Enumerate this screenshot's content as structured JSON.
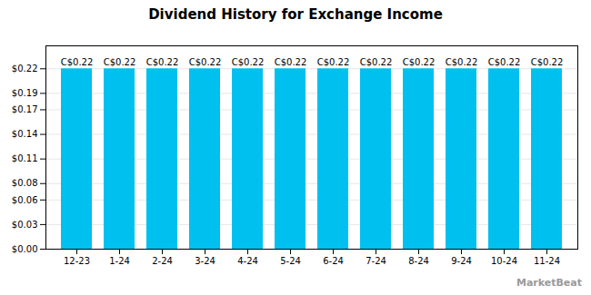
{
  "chart_data": {
    "type": "bar",
    "title": "Dividend History for Exchange Income",
    "categories": [
      "12-23",
      "1-24",
      "2-24",
      "3-24",
      "4-24",
      "5-24",
      "6-24",
      "7-24",
      "8-24",
      "9-24",
      "10-24",
      "11-24"
    ],
    "values": [
      0.22,
      0.22,
      0.22,
      0.22,
      0.22,
      0.22,
      0.22,
      0.22,
      0.22,
      0.22,
      0.22,
      0.22
    ],
    "value_labels": [
      "C$0.22",
      "C$0.22",
      "C$0.22",
      "C$0.22",
      "C$0.22",
      "C$0.22",
      "C$0.22",
      "C$0.22",
      "C$0.22",
      "C$0.22",
      "C$0.22",
      "C$0.22"
    ],
    "data_labels": true,
    "color": "#00c0f0",
    "ylim": [
      0,
      0.248
    ],
    "yticks": [
      {
        "value": 0.0,
        "label": "$0.00"
      },
      {
        "value": 0.03,
        "label": "$0.03"
      },
      {
        "value": 0.06,
        "label": "$0.06"
      },
      {
        "value": 0.08,
        "label": "$0.08"
      },
      {
        "value": 0.11,
        "label": "$0.11"
      },
      {
        "value": 0.14,
        "label": "$0.14"
      },
      {
        "value": 0.17,
        "label": "$0.17"
      },
      {
        "value": 0.19,
        "label": "$0.19"
      },
      {
        "value": 0.22,
        "label": "$0.22"
      }
    ],
    "grid": true,
    "annotations": [
      "MarketBeat"
    ]
  }
}
